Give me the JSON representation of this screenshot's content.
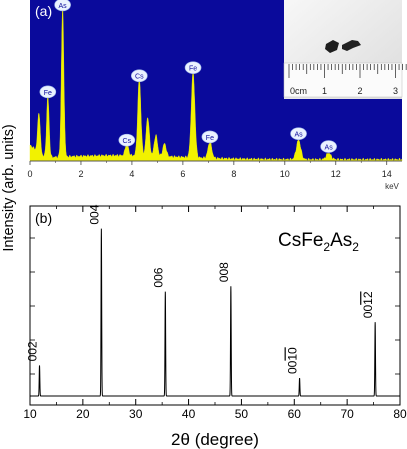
{
  "figure": {
    "ylabel": "Intensity (arb. units)",
    "xlabel_sym": "2θ",
    "xlabel_unit": "(degree)"
  },
  "chart_data": [
    {
      "panel_label": "(a)",
      "type": "area",
      "xunit": "keV",
      "xlim": [
        0,
        14.6
      ],
      "xticks": [
        0,
        2,
        4,
        6,
        8,
        10,
        12,
        14
      ],
      "colors": {
        "background": "#0a0a9b",
        "fill": "#f2f200",
        "marker": "#eaf2ff"
      },
      "peaks": [
        {
          "x": 0.35,
          "y": 0.25
        },
        {
          "x": 0.7,
          "y": 0.38,
          "label": "Fe"
        },
        {
          "x": 1.28,
          "y": 0.92,
          "label": "As"
        },
        {
          "x": 3.8,
          "y": 0.08,
          "label": "Cs"
        },
        {
          "x": 4.29,
          "y": 0.48,
          "label": "Cs"
        },
        {
          "x": 4.62,
          "y": 0.24
        },
        {
          "x": 4.94,
          "y": 0.13
        },
        {
          "x": 5.28,
          "y": 0.08
        },
        {
          "x": 6.4,
          "y": 0.53,
          "label": "Fe"
        },
        {
          "x": 7.06,
          "y": 0.1,
          "label": "Fe"
        },
        {
          "x": 10.54,
          "y": 0.12,
          "label": "As"
        },
        {
          "x": 11.72,
          "y": 0.04,
          "label": "As"
        }
      ],
      "inset": {
        "scale_unit": "cm",
        "scale_ticks": [
          "0",
          "1",
          "2",
          "3"
        ]
      }
    },
    {
      "panel_label": "(b)",
      "type": "line",
      "title_parts": [
        "CsFe",
        "2",
        "As",
        "2"
      ],
      "xlim": [
        10,
        80
      ],
      "xticks": [
        10,
        20,
        30,
        40,
        50,
        60,
        70,
        80
      ],
      "ylim": [
        0,
        1
      ],
      "peaks": [
        {
          "x": 11.8,
          "y": 0.17,
          "label": "002"
        },
        {
          "x": 23.5,
          "y": 0.93,
          "label": "004"
        },
        {
          "x": 35.6,
          "y": 0.58,
          "label": "006"
        },
        {
          "x": 48.0,
          "y": 0.61,
          "label": "008"
        },
        {
          "x": 61.0,
          "y": 0.1,
          "label": "0010",
          "overline": "10"
        },
        {
          "x": 75.3,
          "y": 0.41,
          "label": "0012",
          "overline": "12"
        }
      ]
    }
  ]
}
